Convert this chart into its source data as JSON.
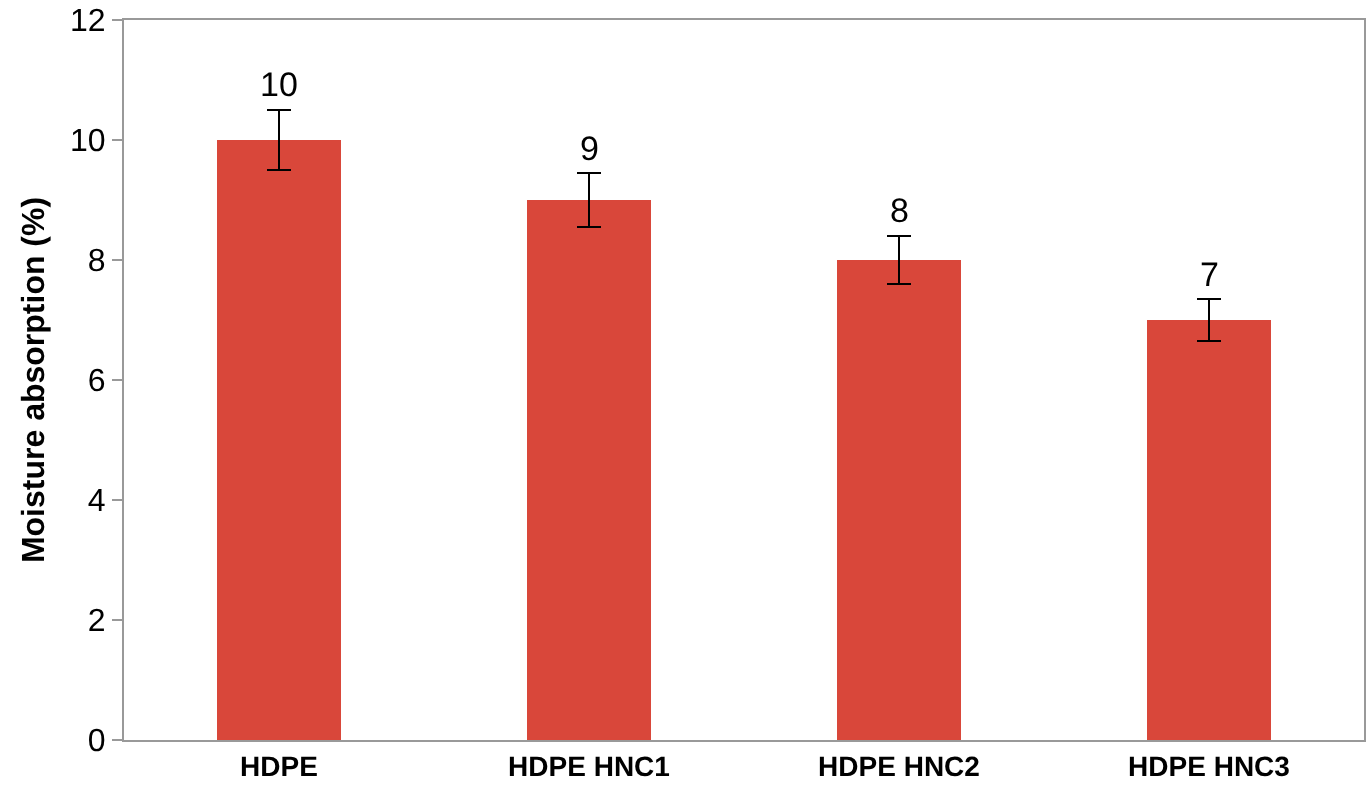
{
  "chart_data": {
    "type": "bar",
    "ylabel": "Moisture absorption (%)",
    "categories": [
      "HDPE",
      "HDPE HNC1",
      "HDPE HNC2",
      "HDPE HNC3"
    ],
    "values": [
      10,
      9,
      8,
      7
    ],
    "errors": [
      0.5,
      0.45,
      0.4,
      0.35
    ],
    "color": "#d9473a",
    "data_labels": true,
    "ylim": [
      0,
      12
    ],
    "yticks": [
      0,
      2,
      4,
      6,
      8,
      10,
      12
    ],
    "grid": false,
    "legend": false
  }
}
